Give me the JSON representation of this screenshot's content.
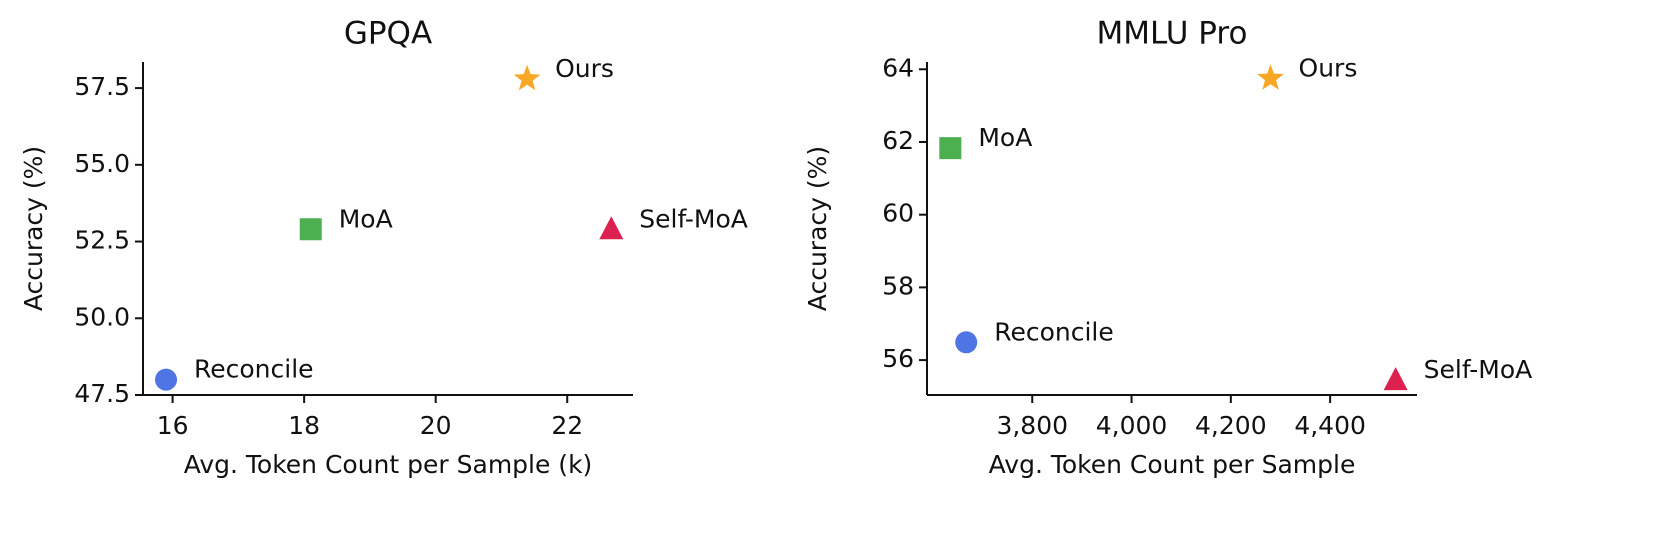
{
  "chart_data": [
    {
      "type": "scatter",
      "title": "GPQA",
      "xlabel": "Avg. Token Count per Sample (k)",
      "ylabel": "Accuracy (%)",
      "xlim": [
        15.55,
        23.0
      ],
      "ylim": [
        47.5,
        58.35
      ],
      "xticks": [
        16,
        18,
        20,
        22
      ],
      "yticks": [
        47.5,
        {
          "value": 50,
          "label": "50.0"
        },
        52.5,
        {
          "value": 55,
          "label": "55.0"
        },
        57.5
      ],
      "series": [
        {
          "name": "Reconcile",
          "marker": "circle",
          "color": "#4f74e3",
          "x": [
            15.9
          ],
          "values": [
            48.0
          ]
        },
        {
          "name": "MoA",
          "marker": "square",
          "color": "#4caf50",
          "x": [
            18.1
          ],
          "values": [
            52.9
          ]
        },
        {
          "name": "Ours",
          "marker": "star",
          "color": "#f7a824",
          "x": [
            21.39
          ],
          "values": [
            57.8
          ]
        },
        {
          "name": "Self-MoA",
          "marker": "triangle",
          "color": "#dc2050",
          "x": [
            22.67
          ],
          "values": [
            52.9
          ]
        }
      ]
    },
    {
      "type": "scatter",
      "title": "MMLU Pro",
      "xlabel": "Avg. Token Count per Sample",
      "ylabel": "Accuracy (%)",
      "xlim": [
        3588,
        4575
      ],
      "ylim": [
        55.04,
        64.2
      ],
      "xticks": [
        {
          "value": 3800,
          "label": "3,800"
        },
        {
          "value": 4000,
          "label": "4,000"
        },
        {
          "value": 4200,
          "label": "4,200"
        },
        {
          "value": 4400,
          "label": "4,400"
        }
      ],
      "yticks": [
        56,
        58,
        60,
        62,
        64
      ],
      "series": [
        {
          "name": "Reconcile",
          "marker": "circle",
          "color": "#4f74e3",
          "x": [
            3667
          ],
          "values": [
            56.49
          ]
        },
        {
          "name": "MoA",
          "marker": "square",
          "color": "#4caf50",
          "x": [
            3635
          ],
          "values": [
            61.83
          ]
        },
        {
          "name": "Ours",
          "marker": "star",
          "color": "#f7a824",
          "x": [
            4280
          ],
          "values": [
            63.75
          ]
        },
        {
          "name": "Self-MoA",
          "marker": "triangle",
          "color": "#dc2050",
          "x": [
            4532
          ],
          "values": [
            55.45
          ]
        }
      ]
    }
  ]
}
